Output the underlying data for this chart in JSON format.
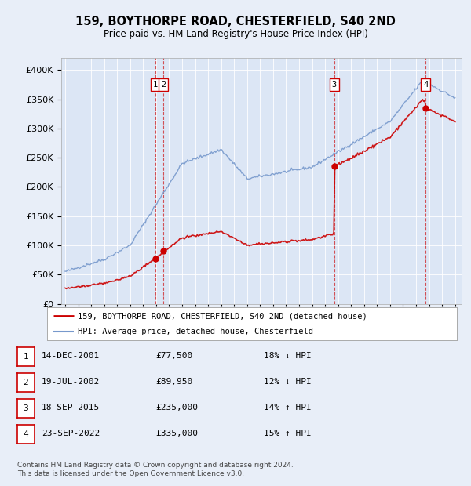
{
  "title": "159, BOYTHORPE ROAD, CHESTERFIELD, S40 2ND",
  "subtitle": "Price paid vs. HM Land Registry's House Price Index (HPI)",
  "legend_line1": "159, BOYTHORPE ROAD, CHESTERFIELD, S40 2ND (detached house)",
  "legend_line2": "HPI: Average price, detached house, Chesterfield",
  "property_color": "#cc0000",
  "hpi_color": "#7799cc",
  "background_color": "#e8eef8",
  "plot_bg_color": "#dce6f5",
  "ylim": [
    0,
    420000
  ],
  "yticks": [
    0,
    50000,
    100000,
    150000,
    200000,
    250000,
    300000,
    350000,
    400000
  ],
  "transactions": [
    {
      "num": 1,
      "date": "14-DEC-2001",
      "price": 77500,
      "pct": "18%",
      "dir": "↓"
    },
    {
      "num": 2,
      "date": "19-JUL-2002",
      "price": 89950,
      "pct": "12%",
      "dir": "↓"
    },
    {
      "num": 3,
      "date": "18-SEP-2015",
      "price": 235000,
      "pct": "14%",
      "dir": "↑"
    },
    {
      "num": 4,
      "date": "23-SEP-2022",
      "price": 335000,
      "pct": "15%",
      "dir": "↑"
    }
  ],
  "footnote1": "Contains HM Land Registry data © Crown copyright and database right 2024.",
  "footnote2": "This data is licensed under the Open Government Licence v3.0."
}
